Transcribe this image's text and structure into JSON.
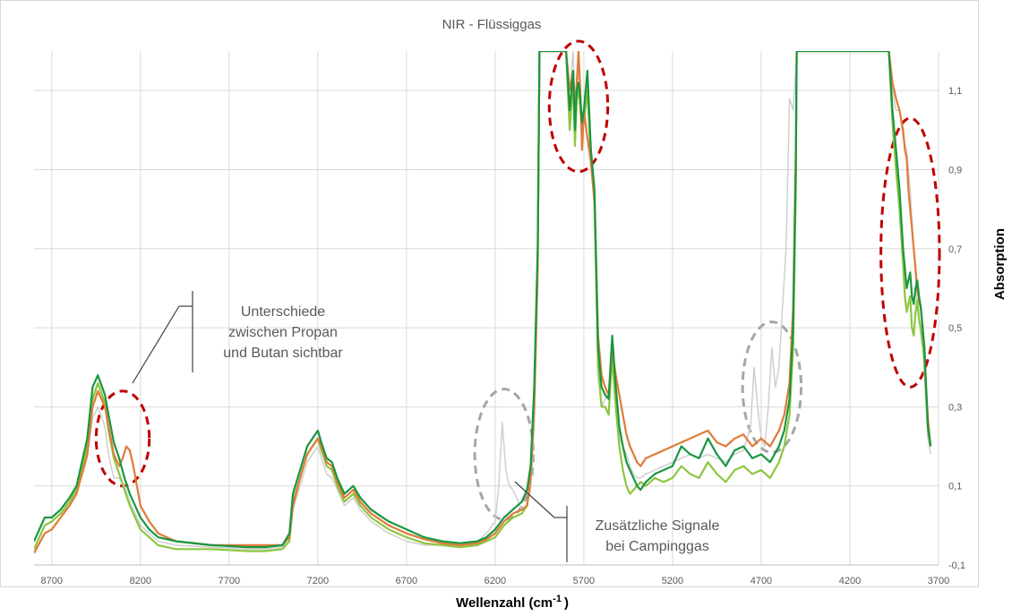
{
  "chart_data": {
    "type": "line",
    "title": "NIR - Flüssiggas",
    "xlabel": "Wellenzahl (cm",
    "xlabel_sup": "-1",
    "xlabel_close": ")",
    "ylabel": "Absorption",
    "xlim": [
      8800,
      3700
    ],
    "ylim": [
      -0.1,
      1.2
    ],
    "x_ticks": [
      8700,
      8200,
      7700,
      7200,
      6700,
      6200,
      5700,
      5200,
      4700,
      4200,
      3700
    ],
    "x_tick_labels": [
      "8700",
      "8200",
      "7700",
      "7200",
      "6700",
      "6200",
      "5700",
      "5200",
      "4700",
      "4200",
      "3700"
    ],
    "y_ticks": [
      -0.1,
      0.1,
      0.3,
      0.5,
      0.7,
      0.9,
      1.1
    ],
    "y_tick_labels": [
      "-0,1",
      "0,1",
      "0,3",
      "0,5",
      "0,7",
      "0,9",
      "1,1"
    ],
    "y_axis_side": "right",
    "grid": true,
    "series": [
      {
        "color": "#1a9641",
        "x": [
          8800,
          8740,
          8700,
          8650,
          8600,
          8560,
          8500,
          8470,
          8440,
          8400,
          8380,
          8350,
          8320,
          8290,
          8260,
          8230,
          8200,
          8150,
          8100,
          8000,
          7800,
          7600,
          7500,
          7400,
          7360,
          7340,
          7300,
          7260,
          7230,
          7200,
          7180,
          7150,
          7120,
          7090,
          7050,
          7000,
          6960,
          6900,
          6800,
          6700,
          6600,
          6500,
          6400,
          6300,
          6250,
          6200,
          6150,
          6100,
          6050,
          6020,
          6000,
          5980,
          5960,
          5950,
          5900,
          5850,
          5800,
          5780,
          5760,
          5750,
          5740,
          5730,
          5720,
          5710,
          5700,
          5680,
          5660,
          5640,
          5620,
          5600,
          5580,
          5560,
          5540,
          5520,
          5500,
          5480,
          5460,
          5440,
          5420,
          5400,
          5380,
          5350,
          5300,
          5250,
          5200,
          5150,
          5100,
          5050,
          5000,
          4950,
          4900,
          4850,
          4800,
          4750,
          4700,
          4650,
          4600,
          4570,
          4540,
          4520,
          4505,
          4500,
          3980,
          3960,
          3940,
          3920,
          3900,
          3890,
          3880,
          3870,
          3860,
          3850,
          3840,
          3830,
          3820,
          3810,
          3800,
          3790,
          3780,
          3770,
          3760,
          3745
        ],
        "y": [
          -0.04,
          0.02,
          0.02,
          0.04,
          0.07,
          0.1,
          0.22,
          0.35,
          0.38,
          0.33,
          0.28,
          0.21,
          0.17,
          0.12,
          0.08,
          0.05,
          0.02,
          -0.01,
          -0.03,
          -0.04,
          -0.05,
          -0.055,
          -0.055,
          -0.05,
          -0.02,
          0.08,
          0.14,
          0.2,
          0.22,
          0.24,
          0.21,
          0.17,
          0.16,
          0.12,
          0.08,
          0.1,
          0.07,
          0.04,
          0.01,
          -0.01,
          -0.03,
          -0.04,
          -0.045,
          -0.04,
          -0.03,
          -0.01,
          0.02,
          0.04,
          0.06,
          0.09,
          0.15,
          0.35,
          0.7,
          1.2,
          1.2,
          1.2,
          1.2,
          1.05,
          1.15,
          1.0,
          1.1,
          1.12,
          1.08,
          1.02,
          1.05,
          1.15,
          0.95,
          0.85,
          0.45,
          0.35,
          0.33,
          0.32,
          0.48,
          0.35,
          0.25,
          0.2,
          0.16,
          0.14,
          0.12,
          0.1,
          0.09,
          0.11,
          0.13,
          0.14,
          0.15,
          0.2,
          0.18,
          0.17,
          0.22,
          0.18,
          0.15,
          0.19,
          0.2,
          0.17,
          0.18,
          0.16,
          0.2,
          0.24,
          0.32,
          0.5,
          0.9,
          1.2,
          1.2,
          1.05,
          0.95,
          0.85,
          0.7,
          0.65,
          0.6,
          0.62,
          0.64,
          0.58,
          0.56,
          0.6,
          0.62,
          0.58,
          0.55,
          0.5,
          0.45,
          0.35,
          0.25,
          0.2
        ]
      },
      {
        "color": "#e07b39",
        "x": [
          8800,
          8740,
          8700,
          8650,
          8600,
          8560,
          8500,
          8470,
          8440,
          8400,
          8380,
          8350,
          8320,
          8300,
          8280,
          8260,
          8240,
          8220,
          8200,
          8150,
          8100,
          8000,
          7800,
          7600,
          7500,
          7400,
          7360,
          7340,
          7300,
          7260,
          7230,
          7200,
          7180,
          7150,
          7120,
          7090,
          7050,
          7000,
          6960,
          6900,
          6800,
          6700,
          6600,
          6500,
          6400,
          6300,
          6250,
          6200,
          6150,
          6100,
          6050,
          6020,
          6000,
          5980,
          5960,
          5950,
          5900,
          5850,
          5800,
          5780,
          5760,
          5750,
          5740,
          5730,
          5720,
          5710,
          5700,
          5680,
          5660,
          5640,
          5620,
          5600,
          5580,
          5560,
          5540,
          5520,
          5500,
          5480,
          5460,
          5440,
          5420,
          5400,
          5380,
          5350,
          5300,
          5250,
          5200,
          5150,
          5100,
          5050,
          5000,
          4950,
          4900,
          4850,
          4800,
          4750,
          4700,
          4650,
          4600,
          4570,
          4540,
          4520,
          4505,
          4500,
          3980,
          3960,
          3940,
          3920,
          3900,
          3890,
          3880,
          3870,
          3860,
          3850,
          3840,
          3830,
          3820,
          3810,
          3800,
          3790,
          3780,
          3770,
          3760,
          3745
        ],
        "y": [
          -0.07,
          -0.02,
          -0.01,
          0.02,
          0.05,
          0.08,
          0.18,
          0.3,
          0.34,
          0.3,
          0.25,
          0.18,
          0.15,
          0.17,
          0.2,
          0.19,
          0.15,
          0.1,
          0.05,
          0.01,
          -0.02,
          -0.04,
          -0.05,
          -0.05,
          -0.05,
          -0.05,
          -0.03,
          0.05,
          0.12,
          0.18,
          0.2,
          0.22,
          0.2,
          0.16,
          0.15,
          0.11,
          0.07,
          0.09,
          0.06,
          0.03,
          0.0,
          -0.02,
          -0.035,
          -0.045,
          -0.05,
          -0.045,
          -0.035,
          -0.02,
          0.01,
          0.03,
          0.04,
          0.05,
          0.12,
          0.3,
          0.65,
          1.2,
          1.2,
          1.2,
          1.2,
          1.1,
          1.15,
          1.05,
          1.12,
          1.2,
          1.1,
          0.95,
          1.05,
          0.98,
          0.92,
          0.82,
          0.48,
          0.38,
          0.35,
          0.33,
          0.44,
          0.38,
          0.33,
          0.28,
          0.23,
          0.2,
          0.18,
          0.16,
          0.15,
          0.17,
          0.18,
          0.19,
          0.2,
          0.21,
          0.22,
          0.23,
          0.24,
          0.21,
          0.2,
          0.22,
          0.23,
          0.2,
          0.22,
          0.2,
          0.24,
          0.28,
          0.36,
          0.55,
          0.95,
          1.2,
          1.2,
          1.12,
          1.08,
          1.05,
          1.0,
          0.95,
          0.93,
          0.85,
          0.8,
          0.75,
          0.7,
          0.65,
          0.6,
          0.57,
          0.55,
          0.5,
          0.45,
          0.35,
          0.27,
          0.2
        ]
      },
      {
        "color": "#8cc63f",
        "x": [
          8800,
          8740,
          8700,
          8650,
          8600,
          8560,
          8500,
          8470,
          8440,
          8400,
          8380,
          8350,
          8320,
          8290,
          8260,
          8230,
          8200,
          8150,
          8100,
          8000,
          7800,
          7600,
          7500,
          7400,
          7360,
          7340,
          7300,
          7260,
          7230,
          7200,
          7180,
          7150,
          7120,
          7090,
          7050,
          7000,
          6960,
          6900,
          6800,
          6700,
          6600,
          6500,
          6400,
          6300,
          6250,
          6200,
          6150,
          6100,
          6050,
          6020,
          6000,
          5980,
          5960,
          5950,
          5900,
          5850,
          5800,
          5780,
          5760,
          5750,
          5740,
          5730,
          5720,
          5710,
          5700,
          5680,
          5660,
          5640,
          5620,
          5600,
          5580,
          5560,
          5540,
          5520,
          5500,
          5480,
          5460,
          5440,
          5420,
          5400,
          5380,
          5350,
          5300,
          5250,
          5200,
          5150,
          5100,
          5050,
          5000,
          4950,
          4900,
          4850,
          4800,
          4750,
          4700,
          4650,
          4600,
          4570,
          4540,
          4520,
          4505,
          4500,
          3980,
          3960,
          3940,
          3920,
          3900,
          3890,
          3880,
          3870,
          3860,
          3850,
          3840,
          3830,
          3820,
          3810,
          3800,
          3790,
          3780,
          3770,
          3760,
          3745
        ],
        "y": [
          -0.06,
          0.0,
          0.01,
          0.03,
          0.06,
          0.09,
          0.2,
          0.32,
          0.36,
          0.31,
          0.24,
          0.17,
          0.13,
          0.09,
          0.05,
          0.02,
          -0.01,
          -0.03,
          -0.05,
          -0.06,
          -0.06,
          -0.065,
          -0.065,
          -0.06,
          -0.04,
          0.06,
          0.12,
          0.18,
          0.2,
          0.22,
          0.19,
          0.15,
          0.14,
          0.1,
          0.06,
          0.08,
          0.05,
          0.02,
          -0.01,
          -0.03,
          -0.045,
          -0.05,
          -0.055,
          -0.05,
          -0.04,
          -0.03,
          0.0,
          0.02,
          0.03,
          0.05,
          0.12,
          0.32,
          0.68,
          1.2,
          1.2,
          1.2,
          1.2,
          1.0,
          1.12,
          0.96,
          1.08,
          1.1,
          1.05,
          1.0,
          1.02,
          1.1,
          0.92,
          0.82,
          0.4,
          0.3,
          0.3,
          0.28,
          0.43,
          0.3,
          0.2,
          0.14,
          0.1,
          0.08,
          0.09,
          0.1,
          0.11,
          0.1,
          0.12,
          0.11,
          0.12,
          0.15,
          0.13,
          0.12,
          0.16,
          0.13,
          0.11,
          0.14,
          0.15,
          0.13,
          0.14,
          0.12,
          0.16,
          0.2,
          0.28,
          0.45,
          0.85,
          1.2,
          1.2,
          1.02,
          0.9,
          0.8,
          0.66,
          0.58,
          0.54,
          0.56,
          0.58,
          0.5,
          0.48,
          0.54,
          0.57,
          0.52,
          0.5,
          0.46,
          0.42,
          0.33,
          0.24,
          0.2
        ]
      },
      {
        "color": "#cfcfcf",
        "x": [
          8800,
          8740,
          8700,
          8650,
          8600,
          8560,
          8500,
          8470,
          8440,
          8400,
          8380,
          8350,
          8320,
          8290,
          8260,
          8230,
          8200,
          8150,
          8100,
          8000,
          7800,
          7600,
          7500,
          7400,
          7360,
          7340,
          7300,
          7260,
          7230,
          7200,
          7180,
          7150,
          7120,
          7090,
          7050,
          7000,
          6960,
          6900,
          6800,
          6700,
          6600,
          6500,
          6400,
          6300,
          6250,
          6200,
          6180,
          6160,
          6150,
          6140,
          6120,
          6100,
          6080,
          6060,
          6050,
          6020,
          6000,
          5980,
          5960,
          5950,
          5900,
          5850,
          5800,
          5780,
          5760,
          5750,
          5740,
          5730,
          5720,
          5710,
          5700,
          5680,
          5660,
          5640,
          5620,
          5600,
          5580,
          5560,
          5540,
          5520,
          5500,
          5480,
          5460,
          5440,
          5420,
          5400,
          5380,
          5350,
          5300,
          5250,
          5200,
          5150,
          5100,
          5050,
          5000,
          4950,
          4900,
          4850,
          4800,
          4760,
          4740,
          4720,
          4700,
          4680,
          4660,
          4640,
          4620,
          4600,
          4580,
          4560,
          4540,
          4520,
          4505,
          4500,
          3980,
          3960,
          3940,
          3920,
          3900,
          3880,
          3860,
          3840,
          3820,
          3800,
          3790,
          3780,
          3770,
          3760,
          3745
        ],
        "y": [
          -0.06,
          0.0,
          0.01,
          0.03,
          0.05,
          0.08,
          0.17,
          0.27,
          0.3,
          0.25,
          0.18,
          0.12,
          0.12,
          0.1,
          0.06,
          0.03,
          0.0,
          -0.02,
          -0.04,
          -0.05,
          -0.055,
          -0.06,
          -0.06,
          -0.055,
          -0.04,
          0.04,
          0.1,
          0.16,
          0.18,
          0.2,
          0.17,
          0.13,
          0.12,
          0.09,
          0.05,
          0.07,
          0.04,
          0.01,
          -0.02,
          -0.04,
          -0.05,
          -0.05,
          -0.05,
          -0.04,
          -0.02,
          0.01,
          0.1,
          0.26,
          0.2,
          0.14,
          0.1,
          0.09,
          0.07,
          0.05,
          0.04,
          0.05,
          0.09,
          0.25,
          0.6,
          1.2,
          1.2,
          1.2,
          1.2,
          1.1,
          1.2,
          1.05,
          1.1,
          1.15,
          1.1,
          1.0,
          1.05,
          1.12,
          0.92,
          0.8,
          0.38,
          0.3,
          0.32,
          0.33,
          0.4,
          0.3,
          0.22,
          0.2,
          0.18,
          0.15,
          0.13,
          0.12,
          0.12,
          0.13,
          0.14,
          0.15,
          0.16,
          0.17,
          0.18,
          0.17,
          0.18,
          0.17,
          0.16,
          0.18,
          0.19,
          0.25,
          0.4,
          0.3,
          0.22,
          0.2,
          0.3,
          0.45,
          0.35,
          0.4,
          0.55,
          0.7,
          1.08,
          1.05,
          1.15,
          1.2,
          1.2,
          1.1,
          1.05,
          1.05,
          0.98,
          0.95,
          0.85,
          0.7,
          0.55,
          0.48,
          0.45,
          0.38,
          0.3,
          0.22,
          0.18
        ]
      }
    ],
    "annotations": [
      {
        "lines": [
          "Unterschiede",
          "zwischen Propan",
          "und Butan sichtbar"
        ]
      },
      {
        "lines": [
          "Zusätzliche Signale",
          "bei Campinggas"
        ]
      }
    ],
    "highlight_ellipses": [
      {
        "color": "#c00000",
        "cx": 8300,
        "cy": 0.22,
        "rx": 150,
        "ry": 0.12
      },
      {
        "color": "#c00000",
        "cx": 5730,
        "cy": 1.06,
        "rx": 165,
        "ry": 0.165
      },
      {
        "color": "#c00000",
        "cx": 3860,
        "cy": 0.69,
        "rx": 165,
        "ry": 0.34
      },
      {
        "color": "#a6a6a6",
        "cx": 6150,
        "cy": 0.18,
        "rx": 165,
        "ry": 0.165
      },
      {
        "color": "#a6a6a6",
        "cx": 4640,
        "cy": 0.35,
        "rx": 165,
        "ry": 0.165
      }
    ]
  }
}
